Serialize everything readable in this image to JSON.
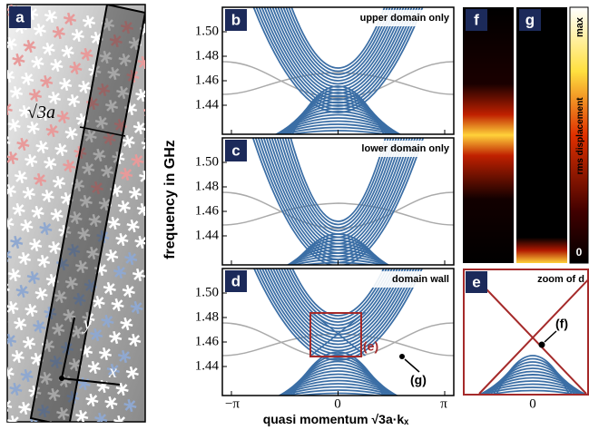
{
  "panel_a": {
    "label": "a",
    "lattice_label": "√3a",
    "axis_y": "y",
    "axis_x": "x"
  },
  "panel_b": {
    "label": "b",
    "caption": "upper domain only"
  },
  "panel_c": {
    "label": "c",
    "caption": "lower domain only"
  },
  "panel_d": {
    "label": "d",
    "caption": "domain wall",
    "box_label": "(e)",
    "point_label": "(g)"
  },
  "panel_e": {
    "label": "e",
    "caption": "zoom of d",
    "point_label": "(f)",
    "x_tick": "0"
  },
  "panel_f": {
    "label": "f"
  },
  "panel_g": {
    "label": "g"
  },
  "colorbar": {
    "top": "max",
    "title": "rms displacement",
    "bottom": "0"
  },
  "axes": {
    "y_label": "frequency in GHz",
    "y_ticks": [
      "1.50",
      "1.48",
      "1.46",
      "1.44"
    ],
    "x_ticks": [
      "−π",
      "0",
      "π"
    ],
    "x_label": "quasi momentum √3a·kₓ"
  }
}
